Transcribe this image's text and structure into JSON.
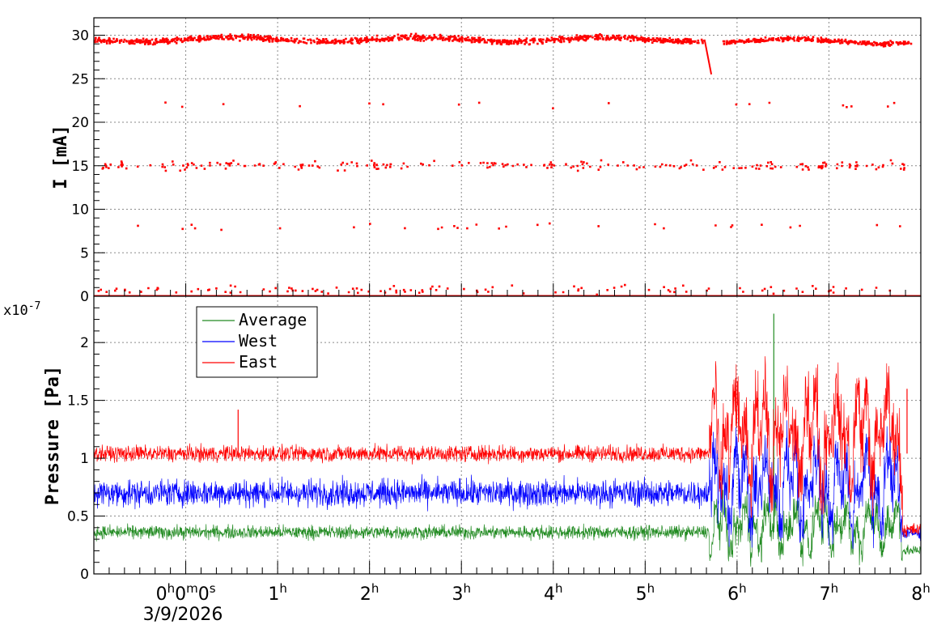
{
  "chart_data": [
    {
      "type": "scatter",
      "ylabel": "I [mA]",
      "xlim_hours": [
        -1,
        8
      ],
      "ylim": [
        0,
        32
      ],
      "yticks": [
        0,
        5,
        10,
        15,
        20,
        25,
        30
      ],
      "grid": true,
      "color": "#ff0000",
      "bands": [
        {
          "level": 29.5,
          "from": -1,
          "to": 5.65,
          "spread": 0.6
        },
        {
          "level": 29.3,
          "from": 5.85,
          "to": 7.9,
          "spread": 0.5
        }
      ],
      "scattered_levels": [
        {
          "level": 15,
          "spread": 0.9,
          "count": 230
        },
        {
          "level": 0.8,
          "spread": 0.8,
          "count": 110
        },
        {
          "level": 8,
          "spread": 0.8,
          "count": 30
        },
        {
          "level": 22,
          "spread": 0.6,
          "count": 18
        }
      ],
      "drop": {
        "from_hour": 5.65,
        "to_hour": 5.72,
        "from_value": 29.3,
        "to_value": 25.5
      },
      "baseline": 0
    },
    {
      "type": "line",
      "ylabel": "Pressure [Pa]",
      "exponent_label": "x10-7",
      "ylim": [
        0,
        2.4
      ],
      "yticks": [
        0,
        0.5,
        1,
        1.5,
        2
      ],
      "ytick_labels": [
        "0",
        "0.5",
        "1",
        "1.5",
        "2"
      ],
      "xlim_hours": [
        -1,
        8
      ],
      "grid": true,
      "legend": "top-left",
      "x_tick_labels": [
        {
          "hour": 0,
          "text": "0h0m0s"
        },
        {
          "hour": 1,
          "text": "1h"
        },
        {
          "hour": 2,
          "text": "2h"
        },
        {
          "hour": 3,
          "text": "3h"
        },
        {
          "hour": 4,
          "text": "4h"
        },
        {
          "hour": 5,
          "text": "5h"
        },
        {
          "hour": 6,
          "text": "6h"
        },
        {
          "hour": 7,
          "text": "7h"
        },
        {
          "hour": 8,
          "text": "8h"
        }
      ],
      "date_label": "3/9/2026",
      "series": [
        {
          "name": "Average",
          "color": "#228b22",
          "segments": [
            {
              "from": -1,
              "to": 5.7,
              "mean": 0.36,
              "noise": 0.05
            },
            {
              "from": 5.7,
              "to": 5.75,
              "mean": 0.25,
              "noise": 0.06
            },
            {
              "from": 5.75,
              "to": 7.8,
              "mean": 0.4,
              "noise": 0.12
            },
            {
              "from": 7.8,
              "to": 8,
              "mean": 0.2,
              "noise": 0.04
            }
          ],
          "spikes": [
            {
              "hour": 6.4,
              "value": 2.25
            }
          ]
        },
        {
          "name": "West",
          "color": "#0000ff",
          "segments": [
            {
              "from": -1,
              "to": 5.7,
              "mean": 0.7,
              "noise": 0.1
            },
            {
              "from": 5.7,
              "to": 7.8,
              "mean": 0.75,
              "noise": 0.2
            },
            {
              "from": 7.8,
              "to": 8,
              "mean": 0.35,
              "noise": 0.05
            }
          ],
          "spikes": []
        },
        {
          "name": "East",
          "color": "#ff0000",
          "segments": [
            {
              "from": -1,
              "to": 5.7,
              "mean": 1.04,
              "noise": 0.06
            },
            {
              "from": 5.7,
              "to": 7.8,
              "mean": 1.2,
              "noise": 0.25
            },
            {
              "from": 7.8,
              "to": 8,
              "mean": 0.38,
              "noise": 0.05
            }
          ],
          "spikes": [
            {
              "hour": 0.57,
              "value": 1.42
            },
            {
              "hour": 7.85,
              "value": 1.6
            }
          ]
        }
      ]
    }
  ]
}
